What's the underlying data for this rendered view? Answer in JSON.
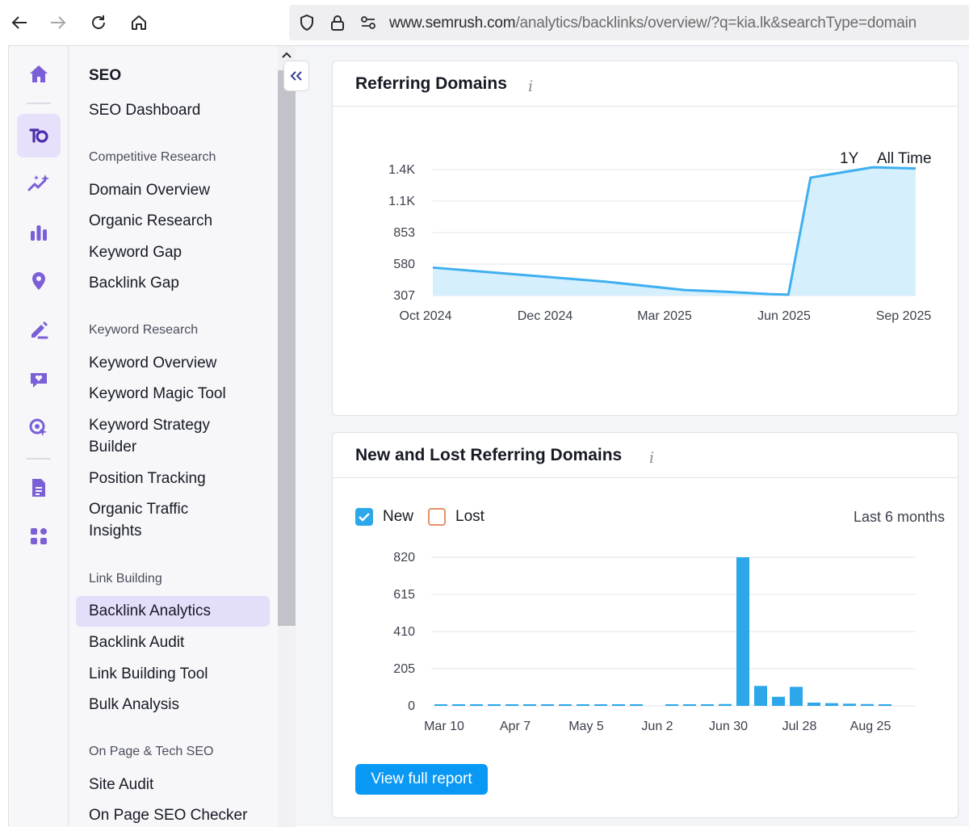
{
  "browser": {
    "url_host": "www.semrush.com",
    "url_path": "/analytics/backlinks/overview/?q=kia.lk&searchType=domain"
  },
  "rail": {
    "icons": [
      "home-icon",
      "seo-icon",
      "ai-icon",
      "chart-icon",
      "location-icon",
      "content-icon",
      "social-icon",
      "ads-icon",
      "reports-icon",
      "apps-icon"
    ],
    "accent": "#7b5fd6"
  },
  "menu": {
    "title": "SEO",
    "dashboard": "SEO Dashboard",
    "groups": [
      {
        "label": "Competitive Research",
        "items": [
          "Domain Overview",
          "Organic Research",
          "Keyword Gap",
          "Backlink Gap"
        ]
      },
      {
        "label": "Keyword Research",
        "items": [
          "Keyword Overview",
          "Keyword Magic Tool",
          "Keyword Strategy Builder",
          "Position Tracking",
          "Organic Traffic Insights"
        ]
      },
      {
        "label": "Link Building",
        "items": [
          "Backlink Analytics",
          "Backlink Audit",
          "Link Building Tool",
          "Bulk Analysis"
        ]
      },
      {
        "label": "On Page & Tech SEO",
        "items": [
          "Site Audit",
          "On Page SEO Checker"
        ]
      }
    ],
    "active_item": "Backlink Analytics"
  },
  "referring_domains": {
    "title": "Referring Domains",
    "ranges": [
      "1Y",
      "All Time"
    ],
    "active_range": "1Y"
  },
  "new_lost": {
    "title": "New and Lost Referring Domains",
    "legend_new": "New",
    "legend_lost": "Lost",
    "period": "Last 6 months",
    "button": "View full report"
  },
  "chart_data": [
    {
      "type": "area",
      "yticks": [
        "1.4K",
        "1.1K",
        "853",
        "580",
        "307"
      ],
      "ylim": [
        307,
        1400
      ],
      "x": [
        "2024-10-01",
        "2024-12-01",
        "2025-02-01",
        "2025-04-01",
        "2025-05-01",
        "2025-06-01",
        "2025-06-15",
        "2025-07-01",
        "2025-08-15",
        "2025-09-15"
      ],
      "values": [
        550,
        490,
        430,
        355,
        340,
        320,
        315,
        1330,
        1420,
        1410
      ],
      "xlabels": [
        "Oct 2024",
        "Dec 2024",
        "Mar 2025",
        "Jun 2025",
        "Sep 2025"
      ],
      "color": "#3eaff0",
      "fill": "#d6effc"
    },
    {
      "type": "bar",
      "yticks": [
        "820",
        "615",
        "410",
        "205",
        "0"
      ],
      "ylim": [
        0,
        820
      ],
      "xlabels": [
        "Mar 10",
        "Apr 7",
        "May 5",
        "Jun 2",
        "Jun 30",
        "Jul 28",
        "Aug 25"
      ],
      "values": [
        8,
        8,
        8,
        8,
        8,
        8,
        8,
        8,
        8,
        8,
        8,
        8,
        0,
        8,
        8,
        8,
        10,
        820,
        110,
        50,
        105,
        18,
        15,
        12,
        10,
        8
      ],
      "color": "#2ba7ea"
    }
  ]
}
